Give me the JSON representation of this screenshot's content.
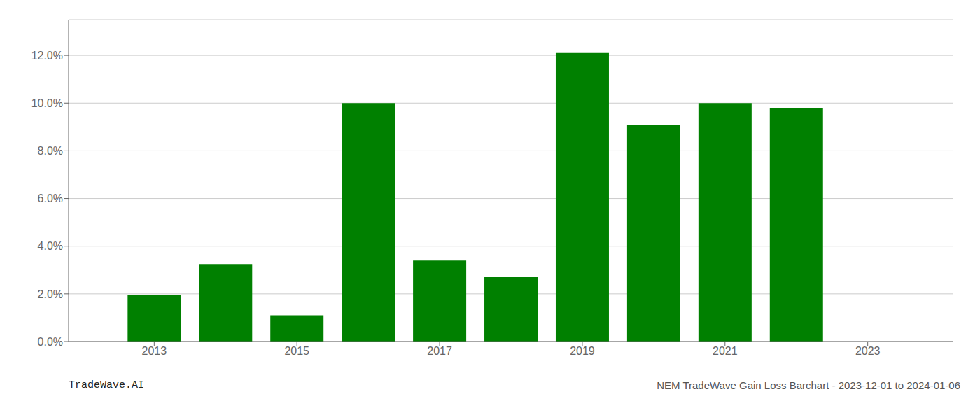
{
  "chart_data": {
    "type": "bar",
    "x": [
      2013,
      2014,
      2015,
      2016,
      2017,
      2018,
      2019,
      2020,
      2021,
      2022
    ],
    "values": [
      0.0195,
      0.0325,
      0.011,
      0.1,
      0.034,
      0.027,
      0.121,
      0.091,
      0.1,
      0.098
    ],
    "color": "#008000",
    "xlim": [
      2011.8,
      2024.2
    ],
    "xticks": [
      2013,
      2015,
      2017,
      2019,
      2021,
      2023
    ],
    "ylim": [
      0,
      0.135
    ],
    "yticks": [
      {
        "value": 0.0,
        "label": "0.0%"
      },
      {
        "value": 0.02,
        "label": "2.0%"
      },
      {
        "value": 0.04,
        "label": "4.0%"
      },
      {
        "value": 0.06,
        "label": "6.0%"
      },
      {
        "value": 0.08,
        "label": "8.0%"
      },
      {
        "value": 0.1,
        "label": "10.0%"
      },
      {
        "value": 0.12,
        "label": "12.0%"
      }
    ],
    "grid": true,
    "annotations": [
      "TradeWave.AI",
      "NEM TradeWave Gain Loss Barchart - 2023-12-01 to 2024-01-06"
    ]
  }
}
